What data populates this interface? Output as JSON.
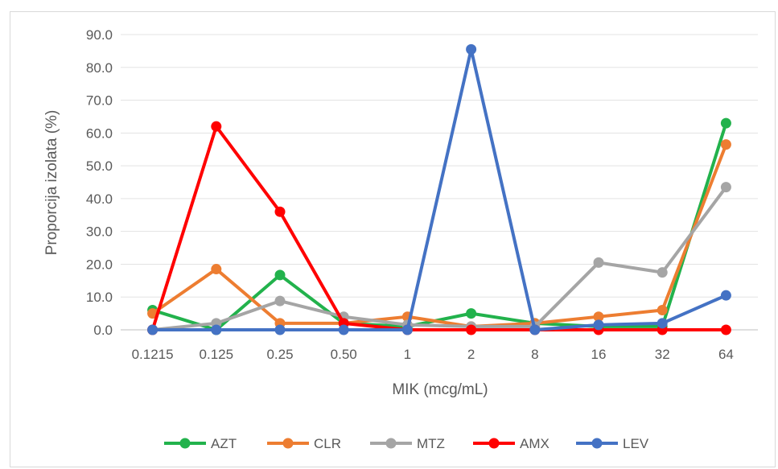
{
  "chart_data": {
    "type": "line",
    "title": "",
    "xlabel": "MIK (mcg/mL)",
    "ylabel": "Proporcija izolata (%)",
    "categories": [
      "0.1215",
      "0.125",
      "0.25",
      "0.50",
      "1",
      "2",
      "8",
      "16",
      "32",
      "64"
    ],
    "ylim": [
      0,
      90
    ],
    "yticks": [
      "0.0",
      "10.0",
      "20.0",
      "30.0",
      "40.0",
      "50.0",
      "60.0",
      "70.0",
      "80.0",
      "90.0"
    ],
    "grid": true,
    "legend": "bottom",
    "series": [
      {
        "name": "AZT",
        "color": "#22b24c",
        "values": [
          6.0,
          0.0,
          16.7,
          2.0,
          1.0,
          5.0,
          2.0,
          1.0,
          1.0,
          63.0
        ]
      },
      {
        "name": "CLR",
        "color": "#ed7d31",
        "values": [
          5.0,
          18.5,
          2.0,
          2.0,
          4.0,
          1.0,
          2.0,
          4.0,
          6.0,
          56.5
        ]
      },
      {
        "name": "MTZ",
        "color": "#a5a5a5",
        "values": [
          0.0,
          2.0,
          8.8,
          4.0,
          1.5,
          1.0,
          1.0,
          20.5,
          17.5,
          43.5
        ]
      },
      {
        "name": "AMX",
        "color": "#ff0000",
        "values": [
          0.0,
          62.0,
          36.0,
          2.0,
          0.0,
          0.0,
          0.0,
          0.0,
          0.0,
          0.0
        ]
      },
      {
        "name": "LEV",
        "color": "#4472c4",
        "values": [
          0.0,
          0.0,
          0.0,
          0.0,
          0.0,
          85.5,
          0.0,
          1.5,
          2.0,
          10.5
        ]
      }
    ]
  }
}
